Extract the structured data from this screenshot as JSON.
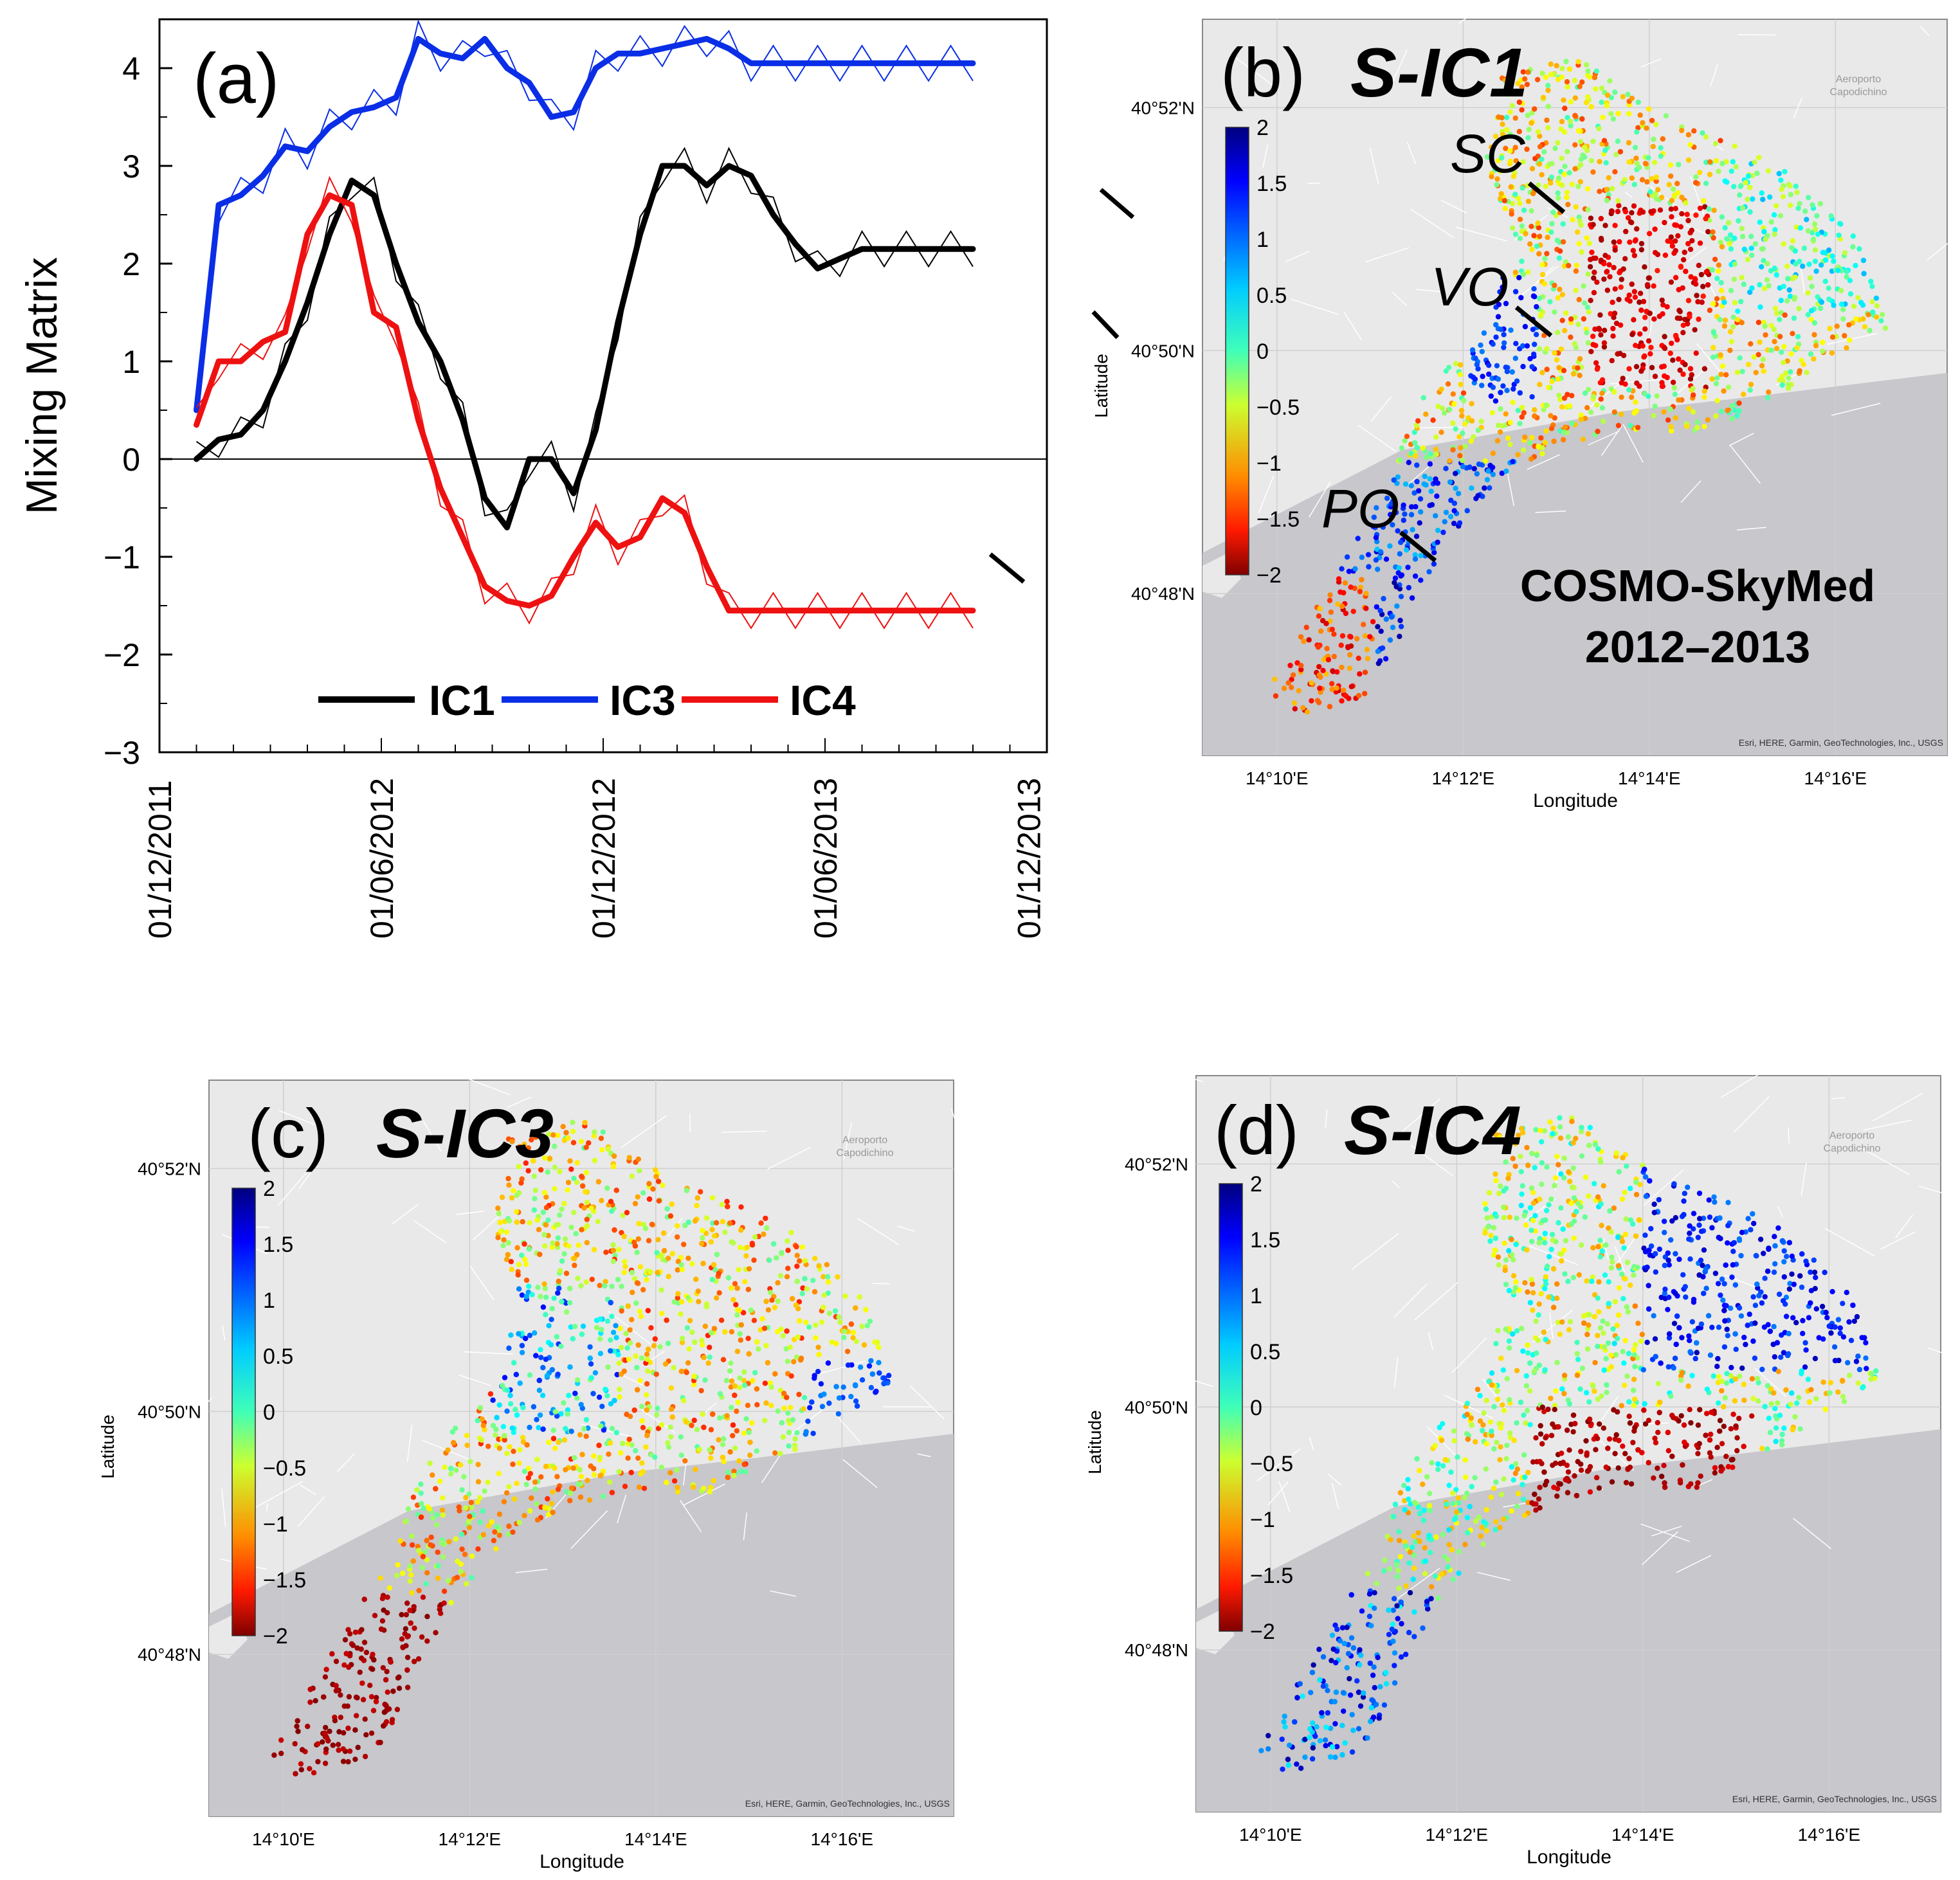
{
  "chart_data": [
    {
      "panel": "a",
      "type": "line",
      "label": "(a)",
      "ylabel": "Mixing Matrix",
      "xlabel": "",
      "ylim": [
        -3,
        4.5
      ],
      "yticks": [
        4,
        3,
        2,
        1,
        0,
        -1,
        -2,
        -3
      ],
      "ytick_labels": [
        "4",
        "3",
        "2",
        "1",
        "0",
        "−1",
        "−2",
        "−3"
      ],
      "xtick_labels": [
        "01/12/2011",
        "01/06/2012",
        "01/12/2012",
        "01/06/2013",
        "01/12/2013"
      ],
      "legend": [
        "IC1",
        "IC3",
        "IC4"
      ],
      "legend_position": "bottom",
      "series": [
        {
          "name": "IC1",
          "color": "#000000",
          "x": [
            0.5,
            0.8,
            1.1,
            1.4,
            1.7,
            2.0,
            2.3,
            2.6,
            2.9,
            3.2,
            3.5,
            3.8,
            4.1,
            4.4,
            4.7,
            5.0,
            5.3,
            5.6,
            5.9,
            6.2,
            6.5,
            6.8,
            7.1,
            7.4,
            7.7,
            8.0,
            8.3,
            8.6,
            8.9,
            9.2,
            9.5,
            9.8,
            10.1,
            10.4,
            10.7,
            11.0
          ],
          "values": [
            0.0,
            0.2,
            0.25,
            0.5,
            1.0,
            1.6,
            2.3,
            2.85,
            2.7,
            2.0,
            1.4,
            1.0,
            0.4,
            -0.4,
            -0.7,
            0.0,
            0.0,
            -0.35,
            0.3,
            1.4,
            2.3,
            3.0,
            3.0,
            2.8,
            3.0,
            2.9,
            2.5,
            2.2,
            1.95,
            2.05,
            2.15,
            2.15,
            2.15,
            2.15,
            2.15,
            2.15
          ]
        },
        {
          "name": "IC3",
          "color": "#0a2ee6",
          "x": [
            0.5,
            0.8,
            1.1,
            1.4,
            1.7,
            2.0,
            2.3,
            2.6,
            2.9,
            3.2,
            3.5,
            3.8,
            4.1,
            4.4,
            4.7,
            5.0,
            5.3,
            5.6,
            5.9,
            6.2,
            6.5,
            6.8,
            7.1,
            7.4,
            7.7,
            8.0,
            8.3,
            8.6,
            8.9,
            9.2,
            9.5,
            9.8,
            10.1,
            10.4,
            10.7,
            11.0
          ],
          "values": [
            0.5,
            2.6,
            2.7,
            2.9,
            3.2,
            3.15,
            3.4,
            3.55,
            3.6,
            3.7,
            4.3,
            4.15,
            4.1,
            4.3,
            4.0,
            3.85,
            3.5,
            3.55,
            4.0,
            4.15,
            4.15,
            4.2,
            4.25,
            4.3,
            4.2,
            4.05,
            4.05,
            4.05,
            4.05,
            4.05,
            4.05,
            4.05,
            4.05,
            4.05,
            4.05,
            4.05
          ]
        },
        {
          "name": "IC4",
          "color": "#ee1111",
          "x": [
            0.5,
            0.8,
            1.1,
            1.4,
            1.7,
            2.0,
            2.3,
            2.6,
            2.9,
            3.2,
            3.5,
            3.8,
            4.1,
            4.4,
            4.7,
            5.0,
            5.3,
            5.6,
            5.9,
            6.2,
            6.5,
            6.8,
            7.1,
            7.4,
            7.7,
            8.0,
            8.3,
            8.6,
            8.9,
            9.2,
            9.5,
            9.8,
            10.1,
            10.4,
            10.7,
            11.0
          ],
          "values": [
            0.35,
            1.0,
            1.0,
            1.2,
            1.3,
            2.3,
            2.7,
            2.6,
            1.5,
            1.35,
            0.4,
            -0.3,
            -0.8,
            -1.3,
            -1.45,
            -1.5,
            -1.4,
            -1.0,
            -0.65,
            -0.9,
            -0.8,
            -0.4,
            -0.55,
            -1.1,
            -1.55,
            -1.55,
            -1.55,
            -1.55,
            -1.55,
            -1.55,
            -1.55,
            -1.55,
            -1.55,
            -1.55,
            -1.55,
            -1.55
          ]
        }
      ]
    },
    {
      "panel": "b",
      "type": "scatter",
      "label": "(b)",
      "title": "S-IC1",
      "xlabel": "Longitude",
      "ylabel": "Latitude",
      "xtick_labels": [
        "14°10'E",
        "14°12'E",
        "14°14'E",
        "14°16'E"
      ],
      "ytick_labels": [
        "40°52'N",
        "40°50'N",
        "40°48'N"
      ],
      "colorbar_range": [
        -2,
        2
      ],
      "colorbar_labels": [
        "2",
        "1.5",
        "1",
        "0.5",
        "0",
        "−0.5",
        "−1",
        "−1.5",
        "−2"
      ],
      "annotations": [
        "SC",
        "VO",
        "PO"
      ],
      "caption_line1": "COSMO-SkyMed",
      "caption_line2": "2012–2013",
      "map_label_line1": "Aeroporto",
      "map_label_line2": "Capodichino",
      "attribution": "Esri, HERE, Garmin, GeoTechnologies, Inc., USGS"
    },
    {
      "panel": "c",
      "type": "scatter",
      "label": "(c)",
      "title": "S-IC3",
      "xlabel": "Longitude",
      "ylabel": "Latitude",
      "xtick_labels": [
        "14°10'E",
        "14°12'E",
        "14°14'E",
        "14°16'E"
      ],
      "ytick_labels": [
        "40°52'N",
        "40°50'N",
        "40°48'N"
      ],
      "colorbar_range": [
        -2,
        2
      ],
      "colorbar_labels": [
        "2",
        "1.5",
        "1",
        "0.5",
        "0",
        "−0.5",
        "−1",
        "−1.5",
        "−2"
      ],
      "map_label_line1": "Aeroporto",
      "map_label_line2": "Capodichino",
      "attribution": "Esri, HERE, Garmin, GeoTechnologies, Inc., USGS"
    },
    {
      "panel": "d",
      "type": "scatter",
      "label": "(d)",
      "title": "S-IC4",
      "xlabel": "Longitude",
      "ylabel": "Latitude",
      "xtick_labels": [
        "14°10'E",
        "14°12'E",
        "14°14'E",
        "14°16'E"
      ],
      "ytick_labels": [
        "40°52'N",
        "40°50'N",
        "40°48'N"
      ],
      "colorbar_range": [
        -2,
        2
      ],
      "colorbar_labels": [
        "2",
        "1.5",
        "1",
        "0.5",
        "0",
        "−0.5",
        "−1",
        "−1.5",
        "−2"
      ],
      "map_label_line1": "Aeroporto",
      "map_label_line2": "Capodichino",
      "attribution": "Esri, HERE, Garmin, GeoTechnologies, Inc., USGS"
    }
  ]
}
